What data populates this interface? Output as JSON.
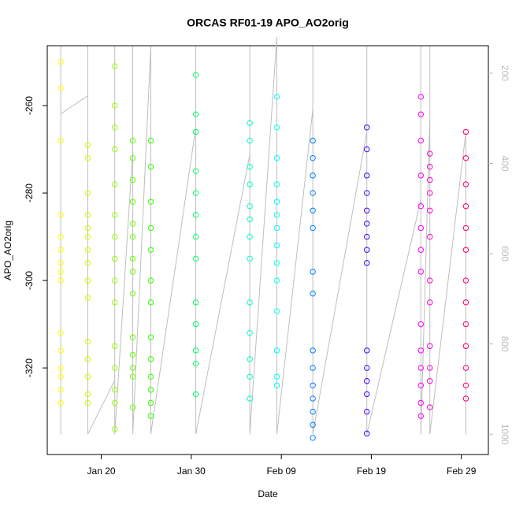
{
  "chart_data": {
    "type": "scatter",
    "title": "ORCAS RF01-19 APO_AO2orig",
    "x_label": "Date",
    "y_label": "APO_AO2orig",
    "xlim": [
      "Jan 14",
      "Mar 03"
    ],
    "xticks": [
      "Jan 20",
      "Jan 30",
      "Feb 09",
      "Feb 19",
      "Feb 29"
    ],
    "ylim": [
      -339.8,
      -246.3
    ],
    "yticks": [
      -260,
      -280,
      -300,
      -320
    ],
    "y2lim": [
      1045,
      139
    ],
    "y2ticks": [
      200,
      400,
      600,
      800,
      1000
    ],
    "series": [
      {
        "axis": "y2",
        "color": "#bebebe",
        "x": [
          "Jan 15",
          "Jan 15",
          "Jan 15",
          "Jan 15",
          "Jan 18",
          "Jan 18",
          "Jan 18",
          "Jan 21",
          "Jan 21",
          "Jan 21",
          "Jan 23",
          "Jan 23",
          "Jan 23",
          "Jan 25",
          "Jan 25",
          "Jan 25",
          "Jan 30",
          "Jan 30",
          "Jan 30",
          "Feb 05",
          "Feb 05",
          "Feb 05",
          "Feb 08",
          "Feb 08",
          "Feb 08",
          "Feb 12",
          "Feb 12",
          "Feb 12",
          "Feb 18",
          "Feb 18",
          "Feb 18",
          "Feb 24",
          "Feb 24",
          "Feb 24",
          "Feb 25",
          "Feb 25",
          "Feb 25",
          "Feb 29",
          "Feb 29"
        ],
        "values": [
          290,
          140,
          1000,
          290,
          250,
          140,
          1000,
          880,
          140,
          1000,
          370,
          140,
          1000,
          140,
          140,
          1000,
          320,
          140,
          1000,
          380,
          140,
          1000,
          120,
          140,
          1000,
          280,
          140,
          1000,
          330,
          140,
          1000,
          480,
          140,
          1000,
          300,
          140,
          1000,
          330,
          1000
        ]
      },
      {
        "x": "Jan 15",
        "color": "#ffff00",
        "values": [
          -250,
          -256,
          -268,
          -285,
          -290,
          -293,
          -296,
          -298,
          -300,
          -312,
          -316,
          -320,
          -322,
          -325,
          -328
        ]
      },
      {
        "x": "Jan 18",
        "color": "#ccff00",
        "values": [
          -269,
          -272,
          -280,
          -285,
          -288,
          -290,
          -293,
          -296,
          -300,
          -304,
          -314,
          -318,
          -322,
          -326,
          -328
        ]
      },
      {
        "x": "Jan 21",
        "color": "#99ff00",
        "values": [
          -251,
          -260,
          -265,
          -270,
          -278,
          -285,
          -290,
          -295,
          -300,
          -305,
          -315,
          -320,
          -325,
          -328,
          -334
        ]
      },
      {
        "x": "Jan 23",
        "color": "#66ff00",
        "values": [
          -268,
          -272,
          -277,
          -282,
          -287,
          -290,
          -295,
          -298,
          -303,
          -313,
          -317,
          -320,
          -322,
          -329
        ]
      },
      {
        "x": "Jan 25",
        "color": "#33ff00",
        "values": [
          -268,
          -274,
          -282,
          -288,
          -293,
          -300,
          -305,
          -313,
          -318,
          -322,
          -325,
          -328,
          -331
        ]
      },
      {
        "x": "Jan 30",
        "color": "#00ff66",
        "values": [
          -253,
          -262,
          -266,
          -275,
          -280,
          -285,
          -290,
          -295,
          -305,
          -310,
          -316,
          -319,
          -326
        ]
      },
      {
        "x": "Feb 05",
        "color": "#00ffcc",
        "values": [
          -264,
          -268,
          -274,
          -278,
          -283,
          -286,
          -290,
          -295,
          -305,
          -312,
          -318,
          -322,
          -327
        ]
      },
      {
        "x": "Feb 08",
        "color": "#00ffff",
        "values": [
          -258,
          -265,
          -272,
          -278,
          -282,
          -285,
          -288,
          -292,
          -296,
          -300,
          -307,
          -316,
          -322,
          -324
        ]
      },
      {
        "x": "Feb 12",
        "color": "#0080ff",
        "values": [
          -268,
          -272,
          -276,
          -280,
          -284,
          -288,
          -298,
          -303,
          -316,
          -320,
          -324,
          -327,
          -330,
          -333,
          -336
        ]
      },
      {
        "x": "Feb 18",
        "color": "#4400ff",
        "values": [
          -265,
          -270,
          -276,
          -280,
          -284,
          -287,
          -290,
          -293,
          -296,
          -316,
          -320,
          -323,
          -326,
          -330,
          -335
        ]
      },
      {
        "x": "Feb 24",
        "color": "#ff00ff",
        "values": [
          -258,
          -262,
          -268,
          -276,
          -283,
          -288,
          -293,
          -298,
          -310,
          -316,
          -320,
          -324,
          -328,
          -331
        ]
      },
      {
        "x": "Feb 25",
        "color": "#ff00cc",
        "values": [
          -271,
          -274,
          -277,
          -280,
          -284,
          -290,
          -300,
          -305,
          -315,
          -320,
          -323,
          -329
        ]
      },
      {
        "x": "Feb 29",
        "color": "#ff0080",
        "values": [
          -266,
          -272,
          -278,
          -283,
          -288,
          -293,
          -300,
          -305,
          -310,
          -315,
          -320,
          -324,
          -327
        ]
      }
    ]
  }
}
